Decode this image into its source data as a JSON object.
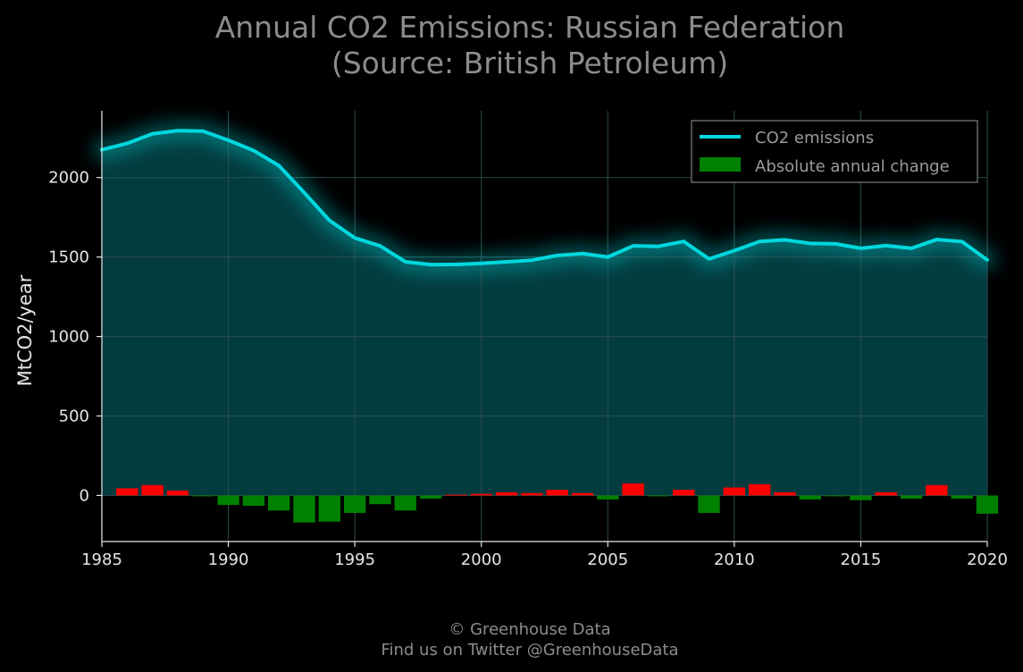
{
  "chart_data": {
    "type": "line",
    "title": "Annual CO2 Emissions: Russian Federation",
    "subtitle": "(Source: British Petroleum)",
    "xlabel": "",
    "ylabel": "MtCO2/year",
    "xlim": [
      1985,
      2020
    ],
    "ylim": [
      -290,
      2420
    ],
    "x_ticks": [
      1985,
      1990,
      1995,
      2000,
      2005,
      2010,
      2015,
      2020
    ],
    "y_ticks": [
      0,
      500,
      1000,
      1500,
      2000
    ],
    "grid": true,
    "legend_position": "top-right",
    "x": [
      1985,
      1986,
      1987,
      1988,
      1989,
      1990,
      1991,
      1992,
      1993,
      1994,
      1995,
      1996,
      1997,
      1998,
      1999,
      2000,
      2001,
      2002,
      2003,
      2004,
      2005,
      2006,
      2007,
      2008,
      2009,
      2010,
      2011,
      2012,
      2013,
      2014,
      2015,
      2016,
      2017,
      2018,
      2019,
      2020
    ],
    "series": [
      {
        "name": "CO2 emissions",
        "kind": "line-area",
        "values": [
          2175,
          2215,
          2275,
          2295,
          2292,
          2235,
          2170,
          2075,
          1905,
          1730,
          1620,
          1570,
          1470,
          1452,
          1453,
          1460,
          1470,
          1480,
          1510,
          1522,
          1500,
          1570,
          1567,
          1598,
          1488,
          1540,
          1598,
          1608,
          1586,
          1583,
          1555,
          1572,
          1555,
          1610,
          1597,
          1482
        ]
      },
      {
        "name": "Absolute annual change",
        "kind": "bar",
        "values": [
          null,
          45,
          65,
          30,
          -5,
          -60,
          -65,
          -95,
          -170,
          -165,
          -110,
          -55,
          -95,
          -20,
          5,
          10,
          20,
          15,
          35,
          15,
          -25,
          75,
          -5,
          35,
          -110,
          50,
          70,
          20,
          -25,
          -5,
          -30,
          20,
          -20,
          65,
          -20,
          -115
        ]
      }
    ],
    "colors": {
      "line": "#00d8de",
      "area": "#023c3f",
      "positive_bar": "#ff0000",
      "negative_bar": "#008000",
      "grid": "#2e4e4e",
      "background": "#000000"
    }
  },
  "footer": {
    "copyright": "© Greenhouse Data",
    "twitter": "Find us on Twitter @GreenhouseData"
  }
}
